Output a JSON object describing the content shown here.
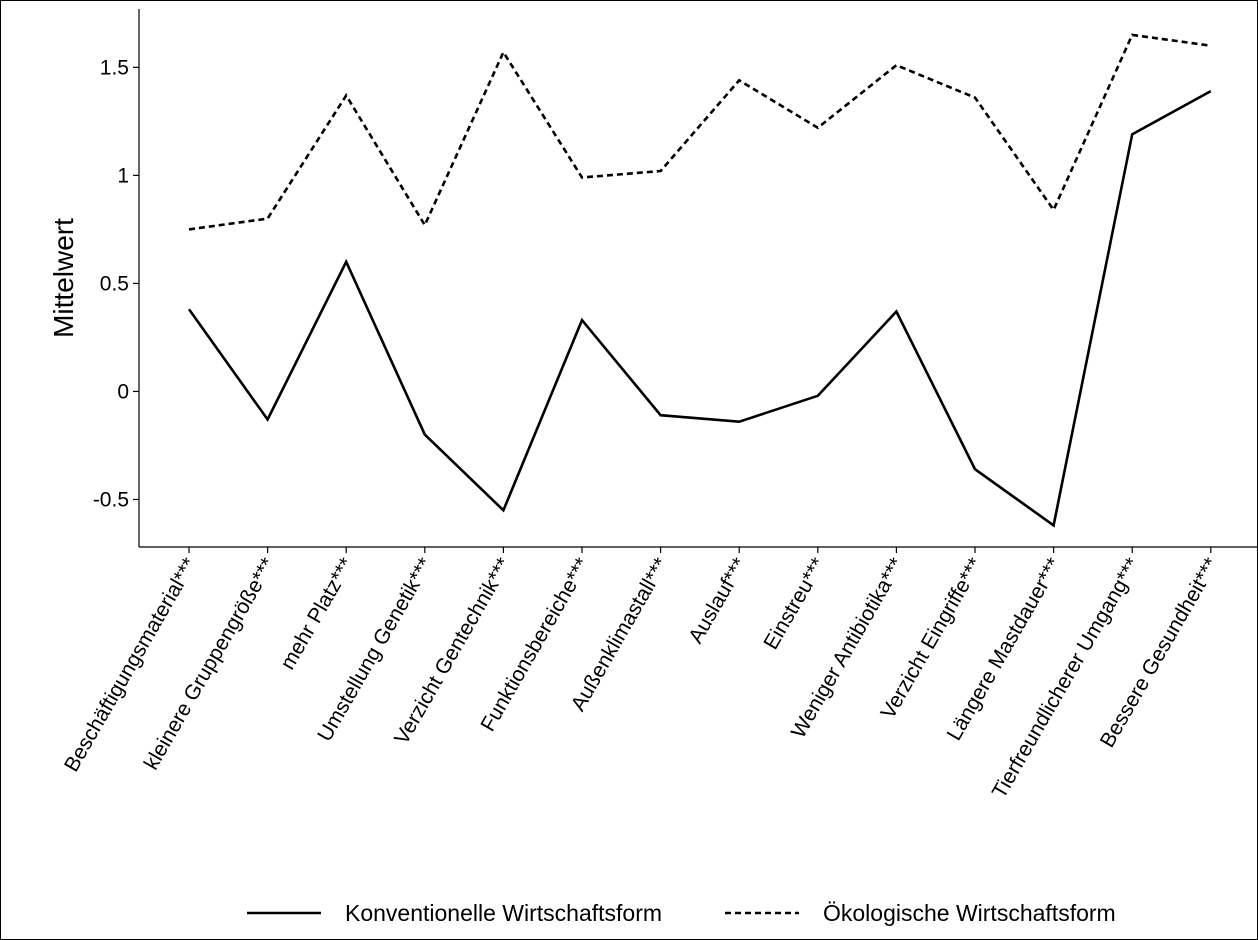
{
  "chart_data": {
    "type": "line",
    "title": "",
    "xlabel": "",
    "ylabel": "Mittelwert",
    "categories": [
      "Beschäftigungsmaterial***",
      "kleinere Gruppengröße***",
      "mehr Platz***",
      "Umstellung Genetik***",
      "Verzicht Gentechnik***",
      "Funktionsbereiche***",
      "Außenklimastall***",
      "Auslauf***",
      "Einstreu***",
      "Weniger Antibiotika***",
      "Verzicht Eingriffe***",
      "Längere Mastdauer***",
      "Tierfreundlicherer Umgang***",
      "Bessere Gesundheit***"
    ],
    "series": [
      {
        "name": "Konventionelle Wirtschaftsform",
        "style": "solid",
        "color": "#000000",
        "values": [
          0.38,
          -0.13,
          0.6,
          -0.2,
          -0.55,
          0.33,
          -0.11,
          -0.14,
          -0.02,
          0.37,
          -0.36,
          -0.62,
          1.19,
          1.39
        ]
      },
      {
        "name": "Ökologische Wirtschaftsform",
        "style": "dashed",
        "color": "#000000",
        "values": [
          0.75,
          0.8,
          1.37,
          0.77,
          1.57,
          0.99,
          1.02,
          1.44,
          1.22,
          1.51,
          1.36,
          0.84,
          1.65,
          1.6
        ]
      }
    ],
    "yticks": [
      -0.5,
      0,
      0.5,
      1,
      1.5
    ],
    "ytick_labels": [
      "-0.5",
      "0",
      "0.5",
      "1",
      "1.5"
    ],
    "ylim": [
      -0.72,
      1.77
    ],
    "grid": false,
    "legend_position": "bottom"
  }
}
